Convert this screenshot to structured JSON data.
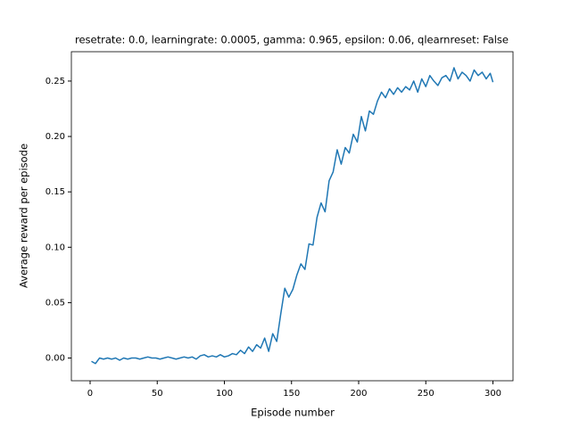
{
  "chart_data": {
    "type": "line",
    "title": "resetrate: 0.0, learningrate: 0.0005, gamma: 0.965, epsilon: 0.06, qlearnreset: False",
    "x_label": "Episode number",
    "y_label": "Average reward per episode",
    "xlim": [
      -13.95,
      314.95
    ],
    "xticks": [
      0,
      50,
      100,
      150,
      200,
      250,
      300
    ],
    "ylim": [
      -0.0205,
      0.2765
    ],
    "yticks": [
      {
        "value": 0,
        "label": "0.00"
      },
      {
        "value": 0.05,
        "label": "0.05"
      },
      {
        "value": 0.1,
        "label": "0.10"
      },
      {
        "value": 0.15,
        "label": "0.15"
      },
      {
        "value": 0.2,
        "label": "0.20"
      },
      {
        "value": 0.25,
        "label": "0.25"
      }
    ],
    "series": [
      {
        "color": "#1f77b4",
        "x": [
          1,
          4,
          7,
          10,
          13,
          16,
          19,
          22,
          25,
          28,
          31,
          34,
          37,
          40,
          43,
          46,
          49,
          52,
          55,
          58,
          61,
          64,
          67,
          70,
          73,
          76,
          79,
          82,
          85,
          88,
          91,
          94,
          97,
          100,
          103,
          106,
          109,
          112,
          115,
          118,
          121,
          124,
          127,
          130,
          133,
          136,
          139,
          142,
          145,
          148,
          151,
          154,
          157,
          160,
          163,
          166,
          169,
          172,
          175,
          178,
          181,
          184,
          187,
          190,
          193,
          196,
          199,
          202,
          205,
          208,
          211,
          214,
          217,
          220,
          223,
          226,
          229,
          232,
          235,
          238,
          241,
          244,
          247,
          250,
          253,
          256,
          259,
          262,
          265,
          268,
          271,
          274,
          277,
          280,
          283,
          286,
          289,
          292,
          295,
          298,
          300
        ],
        "values": [
          -0.003,
          -0.005,
          0.0,
          -0.001,
          0.0,
          -0.001,
          0.0,
          -0.002,
          0.0,
          -0.001,
          0.0,
          0.0,
          -0.001,
          0.0,
          0.001,
          0.0,
          0.0,
          -0.001,
          0.0,
          0.001,
          0.0,
          -0.001,
          0.0,
          0.001,
          0.0,
          0.001,
          -0.001,
          0.002,
          0.003,
          0.001,
          0.002,
          0.001,
          0.003,
          0.001,
          0.002,
          0.004,
          0.003,
          0.007,
          0.004,
          0.01,
          0.006,
          0.012,
          0.009,
          0.018,
          0.006,
          0.022,
          0.015,
          0.04,
          0.063,
          0.055,
          0.062,
          0.075,
          0.085,
          0.08,
          0.103,
          0.102,
          0.127,
          0.14,
          0.132,
          0.16,
          0.168,
          0.188,
          0.175,
          0.19,
          0.185,
          0.202,
          0.195,
          0.218,
          0.205,
          0.223,
          0.22,
          0.232,
          0.24,
          0.235,
          0.243,
          0.238,
          0.244,
          0.24,
          0.245,
          0.242,
          0.25,
          0.24,
          0.252,
          0.245,
          0.255,
          0.25,
          0.246,
          0.253,
          0.255,
          0.25,
          0.262,
          0.252,
          0.258,
          0.255,
          0.25,
          0.26,
          0.255,
          0.258,
          0.252,
          0.257,
          0.249
        ]
      }
    ]
  }
}
